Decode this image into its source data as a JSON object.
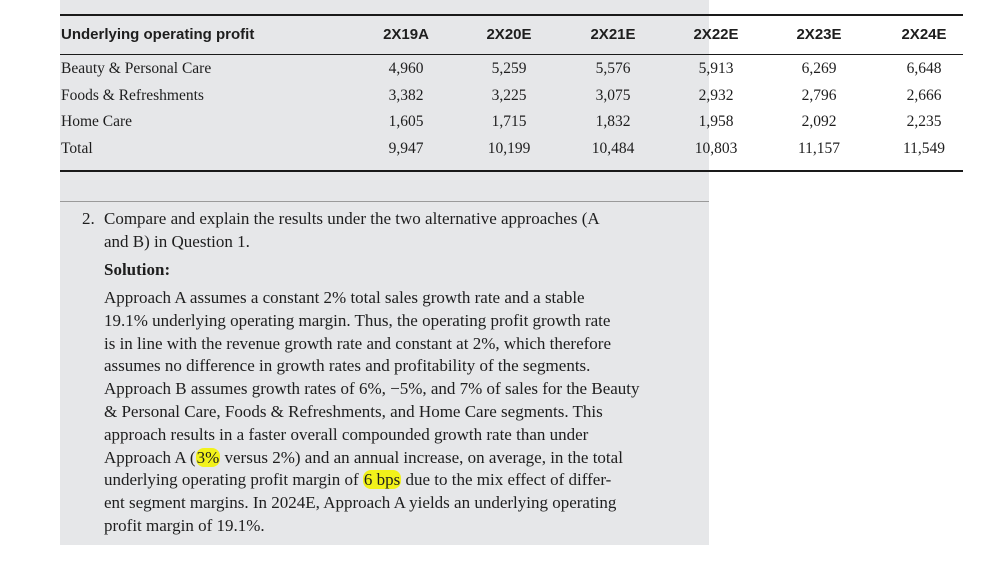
{
  "table": {
    "header": {
      "label": "Underlying operating profit",
      "years": [
        "2X19A",
        "2X20E",
        "2X21E",
        "2X22E",
        "2X23E",
        "2X24E"
      ]
    },
    "rows": [
      {
        "label": "Beauty & Personal Care",
        "values": [
          "4,960",
          "5,259",
          "5,576",
          "5,913",
          "6,269",
          "6,648"
        ]
      },
      {
        "label": "Foods & Refreshments",
        "values": [
          "3,382",
          "3,225",
          "3,075",
          "2,932",
          "2,796",
          "2,666"
        ]
      },
      {
        "label": "Home Care",
        "values": [
          "1,605",
          "1,715",
          "1,832",
          "1,958",
          "2,092",
          "2,235"
        ]
      },
      {
        "label": "Total",
        "values": [
          "9,947",
          "10,199",
          "10,484",
          "10,803",
          "11,157",
          "11,549"
        ]
      }
    ]
  },
  "question": {
    "number": "2.",
    "line1": "Compare and explain the results under the two alternative approaches (A",
    "line2": "and B) in Question 1."
  },
  "solution": {
    "label": "Solution:",
    "lines": [
      "Approach A assumes a constant 2% total sales growth rate and a stable",
      "19.1% underlying operating margin. Thus, the operating profit growth rate",
      "is in line with the revenue growth rate and constant at 2%, which therefore",
      "assumes no difference in growth rates and profitability of the segments.",
      "Approach B assumes growth rates of 6%, −5%, and 7% of sales for the Beauty",
      "& Personal Care, Foods & Refreshments, and Home Care segments. This",
      "approach results in a faster overall compounded growth rate than under"
    ],
    "line8_pre": "Approach A (",
    "line8_hl": "3%",
    "line8_post": " versus 2%) and an annual increase, on average, in the total",
    "line9_pre": "underlying operating profit margin of ",
    "line9_hl": "6 bps",
    "line9_post": " due to the mix effect of differ-",
    "line10": "ent segment margins. In 2024E, Approach A yields an underlying operating",
    "line11": "profit margin of 19.1%."
  },
  "colors": {
    "panel": "#e6e7e9",
    "highlight": "#f2f21a",
    "rule": "#1a1a1a"
  }
}
